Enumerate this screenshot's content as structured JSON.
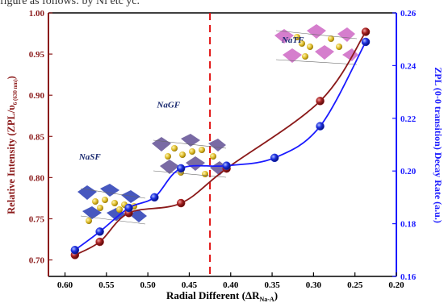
{
  "top_caption": "figure as follows: by Ni etc yc.",
  "chart_data": {
    "type": "line",
    "xlabel": "Radial Different (ΔR",
    "xlabel_sub": "Na-A",
    "xlabel_end": ")",
    "ylabel_left": "Relative Intensity (ZPL/υ",
    "ylabel_left_sub": "6 (630 nm)",
    "ylabel_left_end": ")",
    "ylabel_right": "ZPL (0-0 transition) Decay Rate (a.u.)",
    "x_ticks": [
      "0.60",
      "0.55",
      "0.50",
      "0.45",
      "0.40",
      "0.35",
      "0.30",
      "0.25",
      "0.20"
    ],
    "x_tick_values": [
      0.6,
      0.55,
      0.5,
      0.45,
      0.4,
      0.35,
      0.3,
      0.25,
      0.2
    ],
    "y_left_ticks": [
      "0.70",
      "0.75",
      "0.80",
      "0.85",
      "0.90",
      "0.95",
      "1.00"
    ],
    "y_left_tick_values": [
      0.7,
      0.75,
      0.8,
      0.85,
      0.9,
      0.95,
      1.0
    ],
    "y_right_ticks": [
      "0.16",
      "0.18",
      "0.20",
      "0.22",
      "0.24",
      "0.26"
    ],
    "y_right_tick_values": [
      0.16,
      0.18,
      0.2,
      0.22,
      0.24,
      0.26
    ],
    "xlim": [
      0.62,
      0.2
    ],
    "ylim_left": [
      0.68,
      1.0
    ],
    "ylim_right": [
      0.16,
      0.26
    ],
    "vline_x": 0.425,
    "series": [
      {
        "axis": "left",
        "color": "#8b1a1a",
        "marker_color": "#b22222",
        "x": [
          0.588,
          0.558,
          0.523,
          0.46,
          0.405,
          0.292,
          0.237
        ],
        "y": [
          0.706,
          0.722,
          0.757,
          0.769,
          0.811,
          0.893,
          0.977
        ]
      },
      {
        "axis": "right",
        "color": "#1a1aff",
        "marker_color": "#2233dd",
        "x": [
          0.588,
          0.558,
          0.523,
          0.492,
          0.46,
          0.405,
          0.347,
          0.292,
          0.237
        ],
        "y": [
          0.17,
          0.177,
          0.186,
          0.19,
          0.201,
          0.202,
          0.205,
          0.217,
          0.249
        ]
      }
    ],
    "annotations": [
      {
        "text": "NaSF",
        "x": 0.57,
        "y_left": 0.822
      },
      {
        "text": "NaGF",
        "x": 0.475,
        "y_left": 0.885
      },
      {
        "text": "NaTF",
        "x": 0.325,
        "y_left": 0.964
      }
    ]
  }
}
